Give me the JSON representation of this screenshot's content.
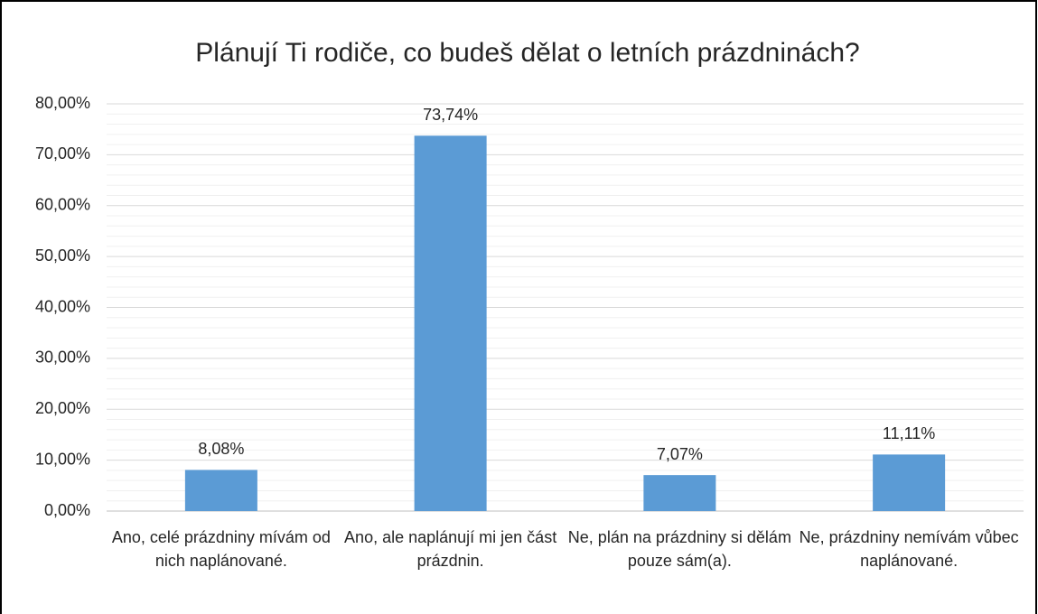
{
  "chart_data": {
    "type": "bar",
    "title": "Plánují Ti rodiče, co budeš dělat o letních prázdninách?",
    "categories": [
      "Ano, celé prázdniny mívám od nich naplánované.",
      "Ano, ale naplánují mi jen část prázdnin.",
      "Ne, plán na prázdniny si dělám pouze sám(a).",
      "Ne, prázdniny nemívám vůbec naplánované."
    ],
    "values": [
      8.08,
      73.74,
      7.07,
      11.11
    ],
    "value_labels": [
      "8,08%",
      "73,74%",
      "7,07%",
      "11,11%"
    ],
    "color": "#5b9bd5",
    "ylim": [
      0,
      80
    ],
    "yticks": [
      {
        "value": 0,
        "label": "0,00%"
      },
      {
        "value": 10,
        "label": "10,00%"
      },
      {
        "value": 20,
        "label": "20,00%"
      },
      {
        "value": 30,
        "label": "30,00%"
      },
      {
        "value": 40,
        "label": "40,00%"
      },
      {
        "value": 50,
        "label": "50,00%"
      },
      {
        "value": 60,
        "label": "60,00%"
      },
      {
        "value": 70,
        "label": "70,00%"
      },
      {
        "value": 80,
        "label": "80,00%"
      }
    ],
    "grid": true
  }
}
